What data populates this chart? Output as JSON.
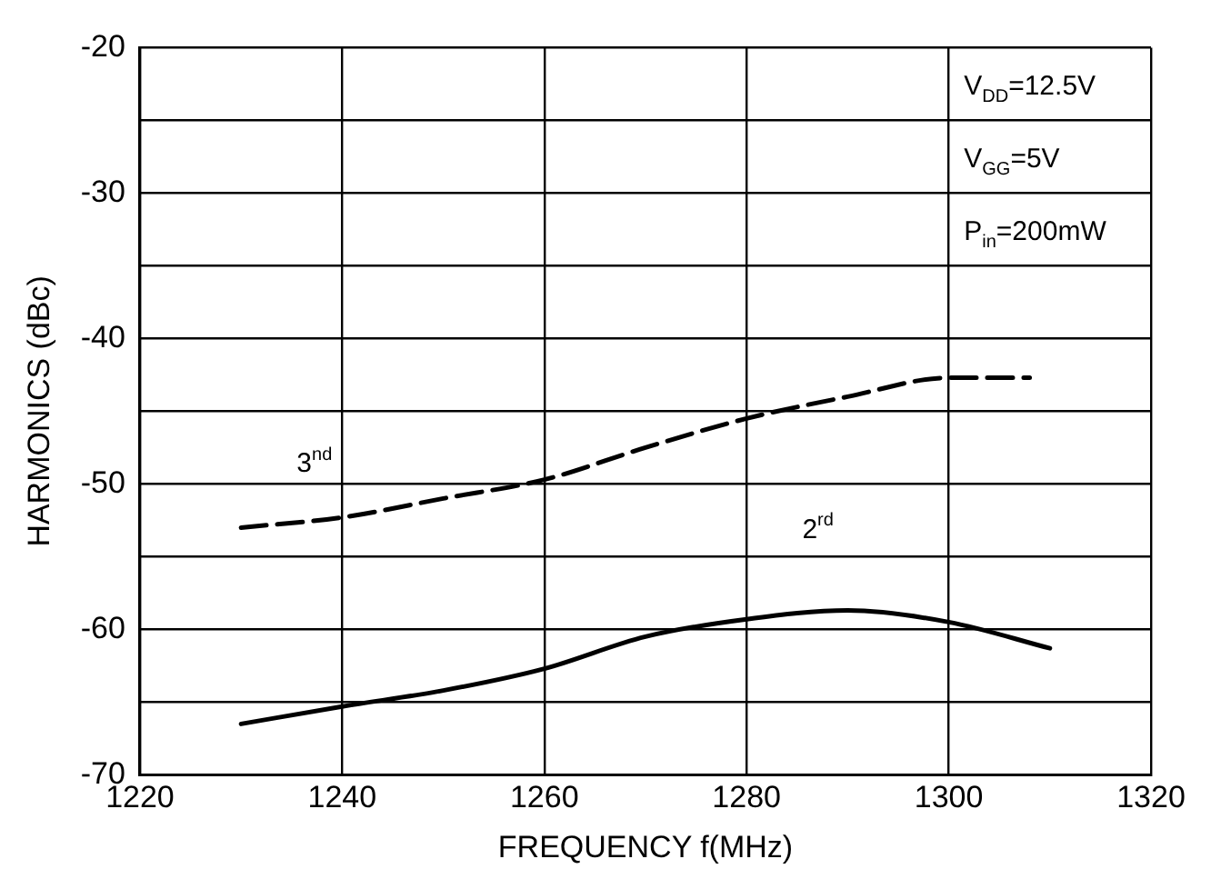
{
  "chart_data": {
    "type": "line",
    "xlabel": "FREQUENCY f(MHz)",
    "ylabel": "HARMONICS (dBc)",
    "xlim": [
      1220,
      1320
    ],
    "xticks": [
      1220,
      1240,
      1260,
      1280,
      1300,
      1320
    ],
    "ylim": [
      -70,
      -20
    ],
    "yticks": [
      -70,
      {
        "value": -65,
        "label": null
      },
      -60,
      {
        "value": -55,
        "label": null
      },
      -50,
      {
        "value": -45,
        "label": null
      },
      -40,
      {
        "value": -35,
        "label": null
      },
      -30,
      {
        "value": -25,
        "label": null
      },
      -20
    ],
    "grid": true,
    "legend": false,
    "marker": "none",
    "annotations": [
      "V$_{DD}$=12.5V",
      "V$_{GG}$=5V",
      "P$_{in}$=200mW"
    ],
    "series": [
      {
        "name": "3$^{nd}$",
        "color": "#000000",
        "line_style": "dashed",
        "x": [
          1230,
          1240,
          1250,
          1260,
          1270,
          1280,
          1290,
          1300,
          1308
        ],
        "values": [
          -53,
          -52.3,
          -51,
          -49.7,
          -47.5,
          -45.5,
          -44,
          -42.7,
          -42.7
        ]
      },
      {
        "name": "2$^{rd}$",
        "color": "#000000",
        "line_style": "solid",
        "x": [
          1230,
          1240,
          1250,
          1260,
          1270,
          1280,
          1290,
          1300,
          1310
        ],
        "values": [
          -66.5,
          -65.3,
          -64.2,
          -62.7,
          -60.5,
          -59.3,
          -58.7,
          -59.5,
          -61.3
        ]
      }
    ]
  }
}
